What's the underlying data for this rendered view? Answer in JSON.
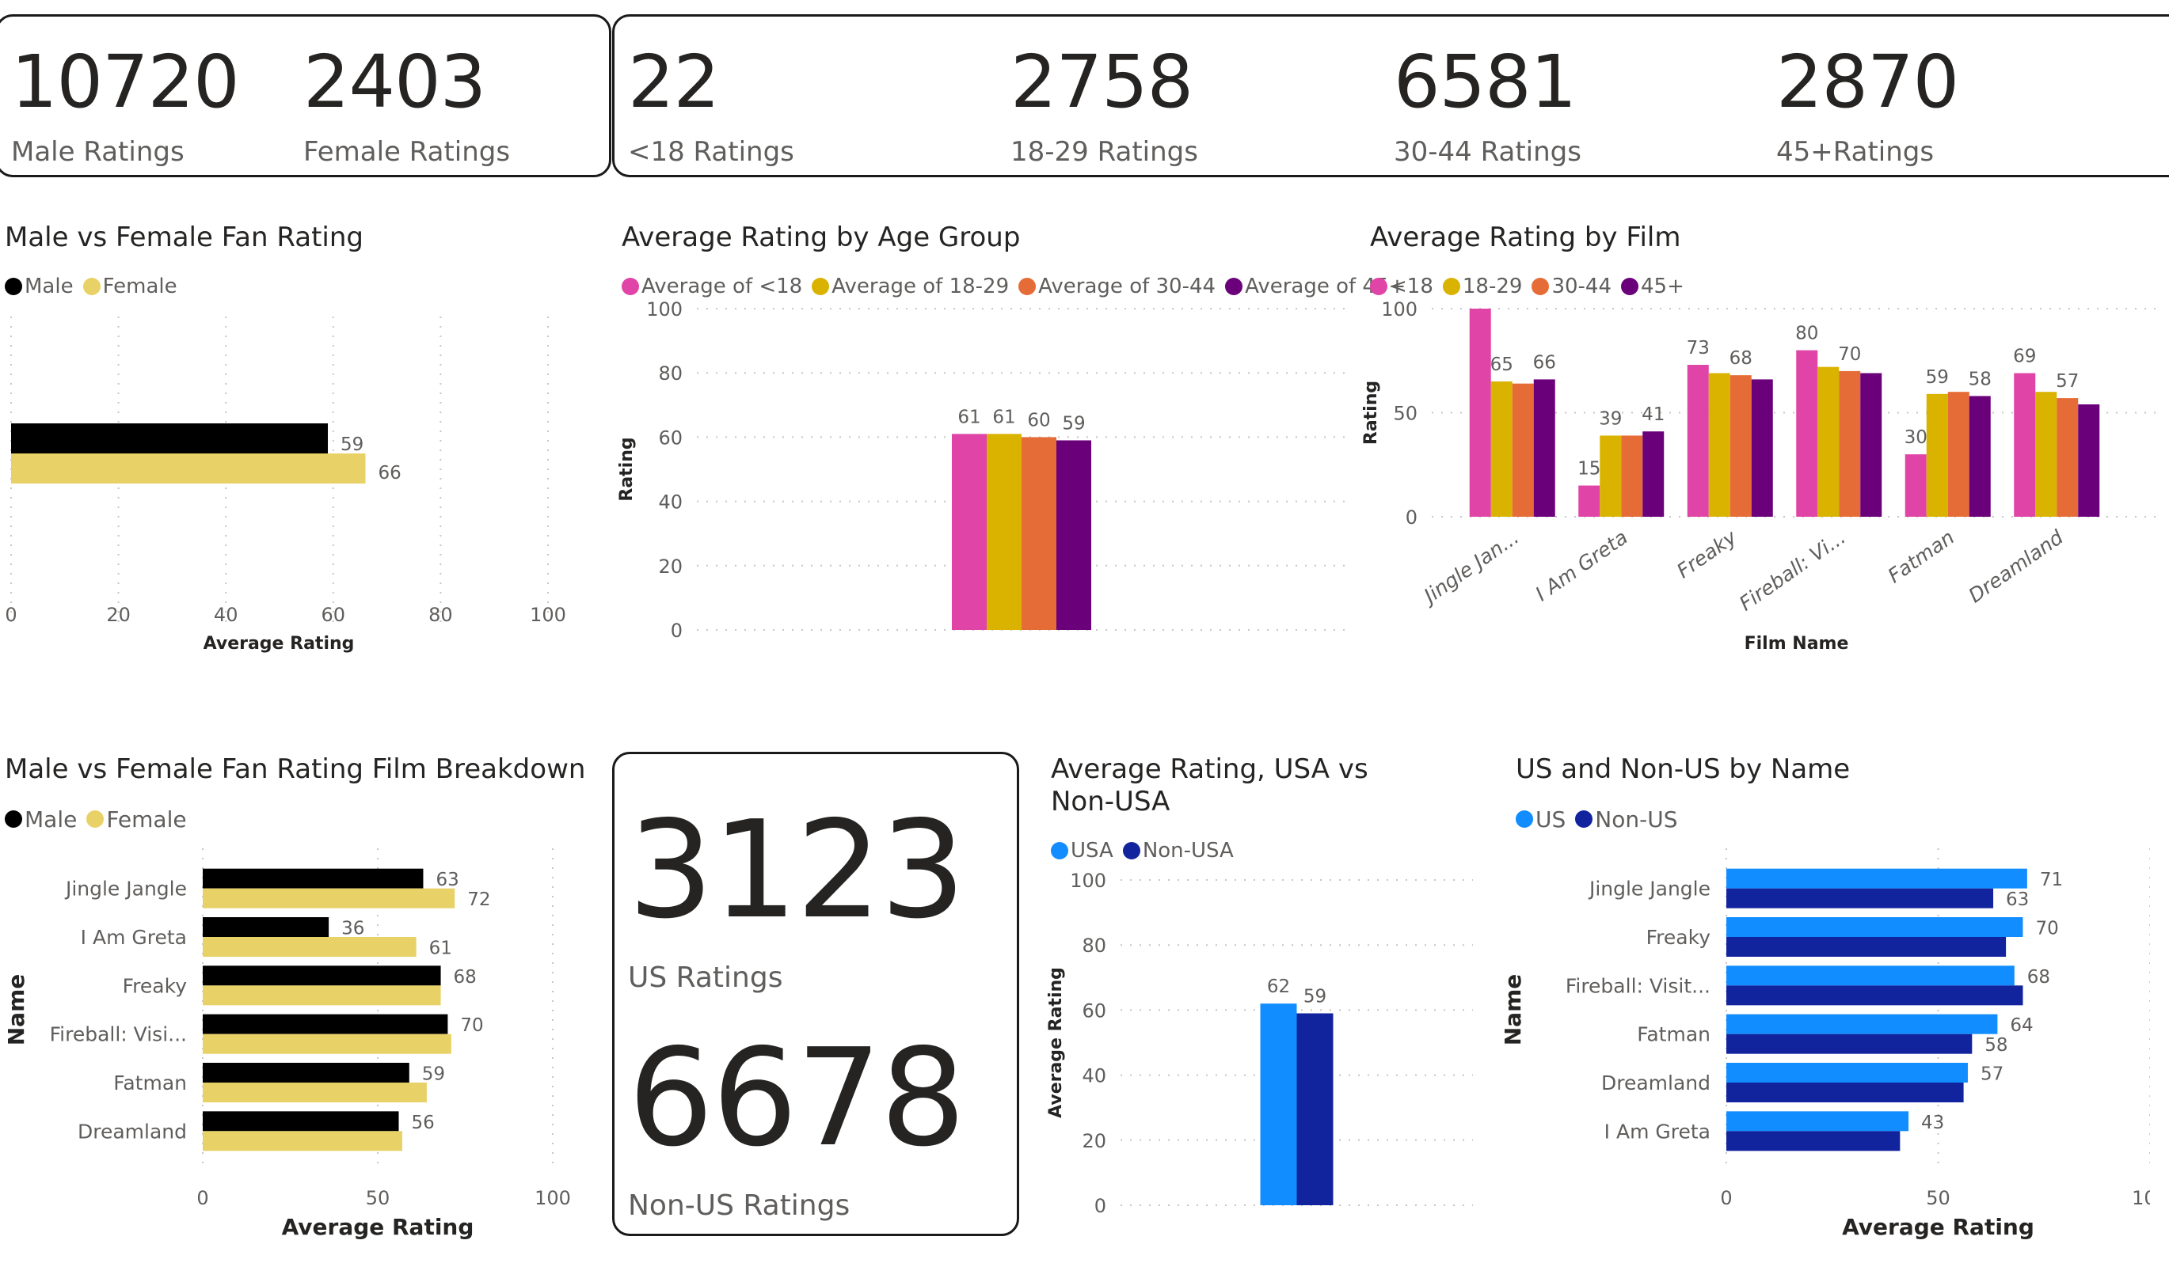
{
  "kpis": {
    "gender": [
      {
        "value": "10720",
        "label": "Male Ratings"
      },
      {
        "value": "2403",
        "label": "Female Ratings"
      }
    ],
    "age": [
      {
        "value": "22",
        "label": "<18 Ratings"
      },
      {
        "value": "2758",
        "label": "18-29 Ratings"
      },
      {
        "value": "6581",
        "label": "30-44 Ratings"
      },
      {
        "value": "2870",
        "label": "45+Ratings"
      }
    ],
    "region": [
      {
        "value": "3123",
        "label": "US Ratings"
      },
      {
        "value": "6678",
        "label": "Non-US Ratings"
      }
    ]
  },
  "colors": {
    "male": "#000000",
    "female": "#E8D166",
    "under18": "#E044A7",
    "age18_29": "#D9B300",
    "age30_44": "#E66C37",
    "age45plus": "#6B007B",
    "usa": "#118DFF",
    "nonusa": "#12239E"
  },
  "chart_data": [
    {
      "id": "gender_avg",
      "type": "bar",
      "orientation": "horizontal",
      "title": "Male vs Female Fan Rating",
      "legend": [
        "Male",
        "Female"
      ],
      "legend_position": "top-left",
      "categories": [
        ""
      ],
      "series": [
        {
          "name": "Male",
          "values": [
            59
          ]
        },
        {
          "name": "Female",
          "values": [
            66
          ]
        }
      ],
      "xlabel": "Average Rating",
      "ylabel": "",
      "xlim": [
        0,
        100
      ],
      "xticks": [
        "0",
        "20",
        "40",
        "60",
        "80",
        "100"
      ],
      "grid": true
    },
    {
      "id": "age_avg",
      "type": "bar",
      "orientation": "vertical",
      "title": "Average Rating by Age Group",
      "legend": [
        "Average of <18",
        "Average of 18-29",
        "Average of 30-44",
        "Average of 45+"
      ],
      "legend_position": "top-left",
      "categories": [
        ""
      ],
      "series": [
        {
          "name": "Average of <18",
          "values": [
            61
          ]
        },
        {
          "name": "Average of 18-29",
          "values": [
            61
          ]
        },
        {
          "name": "Average of 30-44",
          "values": [
            60
          ]
        },
        {
          "name": "Average of 45+",
          "values": [
            59
          ]
        }
      ],
      "xlabel": "",
      "ylabel": "Rating",
      "ylim": [
        0,
        100
      ],
      "yticks": [
        "0",
        "20",
        "40",
        "60",
        "80",
        "100"
      ],
      "grid": true
    },
    {
      "id": "film_age",
      "type": "bar",
      "orientation": "vertical",
      "title": "Average Rating by Film",
      "legend": [
        "<18",
        "18-29",
        "30-44",
        "45+"
      ],
      "legend_position": "top-left",
      "categories": [
        "Jingle Jan...",
        "I Am Greta",
        "Freaky",
        "Fireball: Vi...",
        "Fatman",
        "Dreamland"
      ],
      "series": [
        {
          "name": "<18",
          "values": [
            100,
            15,
            73,
            80,
            30,
            69
          ],
          "labels": [
            "100",
            "15",
            "73",
            "80",
            "30",
            "69"
          ]
        },
        {
          "name": "18-29",
          "values": [
            65,
            39,
            69,
            72,
            59,
            60
          ],
          "labels": [
            "65",
            "39",
            "",
            "",
            "59",
            ""
          ]
        },
        {
          "name": "30-44",
          "values": [
            64,
            39,
            68,
            70,
            60,
            57
          ],
          "labels": [
            "",
            "",
            "68",
            "70",
            "",
            "57"
          ]
        },
        {
          "name": "45+",
          "values": [
            66,
            41,
            66,
            69,
            58,
            54
          ],
          "labels": [
            "66",
            "41",
            "",
            "",
            "58",
            ""
          ]
        }
      ],
      "xlabel": "Film Name",
      "ylabel": "Rating",
      "ylim": [
        0,
        100
      ],
      "yticks": [
        "0",
        "50",
        "100"
      ],
      "grid": true
    },
    {
      "id": "film_gender",
      "type": "bar",
      "orientation": "horizontal",
      "title": "Male vs Female Fan Rating Film Breakdown",
      "legend": [
        "Male",
        "Female"
      ],
      "legend_position": "top-left",
      "categories": [
        "Jingle Jangle",
        "I Am Greta",
        "Freaky",
        "Fireball: Visi...",
        "Fatman",
        "Dreamland"
      ],
      "series": [
        {
          "name": "Male",
          "values": [
            63,
            36,
            68,
            70,
            59,
            56
          ],
          "labels": [
            "63",
            "36",
            "68",
            "70",
            "59",
            "56"
          ]
        },
        {
          "name": "Female",
          "values": [
            72,
            61,
            68,
            71,
            64,
            57
          ],
          "labels": [
            "72",
            "61",
            "",
            "",
            "",
            ""
          ]
        }
      ],
      "xlabel": "Average Rating",
      "ylabel": "Name",
      "xlim": [
        0,
        100
      ],
      "xticks": [
        "0",
        "50",
        "100"
      ],
      "grid": true
    },
    {
      "id": "usa_avg",
      "type": "bar",
      "orientation": "vertical",
      "title": "Average Rating, USA vs Non-USA",
      "title_lines": [
        "Average Rating, USA vs",
        "Non-USA"
      ],
      "legend": [
        "USA",
        "Non-USA"
      ],
      "legend_position": "top-left",
      "categories": [
        ""
      ],
      "series": [
        {
          "name": "USA",
          "values": [
            62
          ]
        },
        {
          "name": "Non-USA",
          "values": [
            59
          ]
        }
      ],
      "xlabel": "",
      "ylabel": "Average Rating",
      "ylim": [
        0,
        100
      ],
      "yticks": [
        "0",
        "20",
        "40",
        "60",
        "80",
        "100"
      ],
      "grid": true
    },
    {
      "id": "film_region",
      "type": "bar",
      "orientation": "horizontal",
      "title": "US and Non-US by Name",
      "legend": [
        "US",
        "Non-US"
      ],
      "legend_position": "top-left",
      "categories": [
        "Jingle Jangle",
        "Freaky",
        "Fireball: Visit...",
        "Fatman",
        "Dreamland",
        "I Am Greta"
      ],
      "series": [
        {
          "name": "US",
          "values": [
            71,
            70,
            68,
            64,
            57,
            43
          ],
          "labels": [
            "71",
            "70",
            "68",
            "64",
            "57",
            "43"
          ]
        },
        {
          "name": "Non-US",
          "values": [
            63,
            66,
            70,
            58,
            56,
            41
          ],
          "labels": [
            "63",
            "",
            "",
            "58",
            "",
            ""
          ]
        }
      ],
      "xlabel": "Average Rating",
      "ylabel": "Name",
      "xlim": [
        0,
        100
      ],
      "xticks": [
        "0",
        "50",
        "100"
      ],
      "grid": true
    }
  ]
}
